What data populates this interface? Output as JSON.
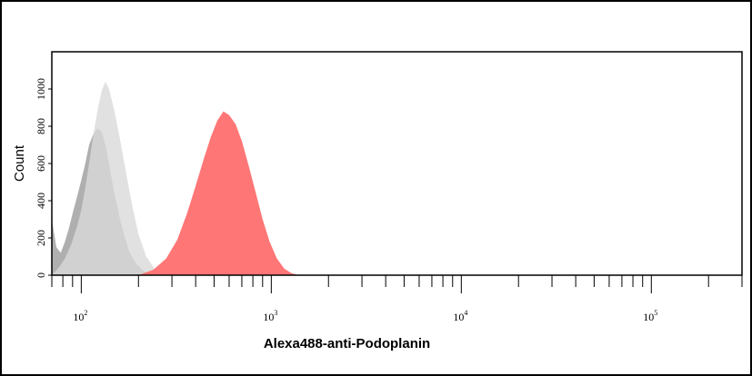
{
  "chart_data": {
    "type": "area",
    "title": "",
    "xlabel": "Alexa488-anti-Podoplanin",
    "ylabel": "Count",
    "x_scale": "log",
    "xlim": [
      70,
      300000
    ],
    "ylim": [
      0,
      1200
    ],
    "x_ticks": [
      {
        "value": 100,
        "base": "10",
        "exp": "2"
      },
      {
        "value": 1000,
        "base": "10",
        "exp": "3"
      },
      {
        "value": 10000,
        "base": "10",
        "exp": "4"
      },
      {
        "value": 100000,
        "base": "10",
        "exp": "5"
      }
    ],
    "y_ticks": [
      "0",
      "200",
      "400",
      "600",
      "800",
      "1000"
    ],
    "grid": false,
    "series": [
      {
        "color": "#a8a8a8",
        "points": [
          [
            70,
            300
          ],
          [
            74,
            150
          ],
          [
            78,
            120
          ],
          [
            82,
            180
          ],
          [
            86,
            250
          ],
          [
            90,
            330
          ],
          [
            95,
            420
          ],
          [
            100,
            510
          ],
          [
            105,
            600
          ],
          [
            110,
            700
          ],
          [
            116,
            760
          ],
          [
            122,
            790
          ],
          [
            128,
            770
          ],
          [
            135,
            690
          ],
          [
            142,
            560
          ],
          [
            150,
            430
          ],
          [
            160,
            300
          ],
          [
            170,
            200
          ],
          [
            180,
            120
          ],
          [
            195,
            60
          ],
          [
            215,
            20
          ],
          [
            240,
            0
          ]
        ]
      },
      {
        "color": "#d9d9d9",
        "points": [
          [
            70,
            0
          ],
          [
            76,
            40
          ],
          [
            82,
            90
          ],
          [
            88,
            160
          ],
          [
            95,
            260
          ],
          [
            100,
            350
          ],
          [
            105,
            470
          ],
          [
            110,
            600
          ],
          [
            116,
            760
          ],
          [
            122,
            890
          ],
          [
            128,
            990
          ],
          [
            134,
            1040
          ],
          [
            140,
            1000
          ],
          [
            148,
            900
          ],
          [
            158,
            760
          ],
          [
            170,
            580
          ],
          [
            185,
            380
          ],
          [
            200,
            220
          ],
          [
            220,
            100
          ],
          [
            245,
            30
          ],
          [
            270,
            0
          ]
        ]
      },
      {
        "color": "#ff6a6a",
        "points": [
          [
            200,
            0
          ],
          [
            240,
            30
          ],
          [
            280,
            90
          ],
          [
            320,
            190
          ],
          [
            360,
            330
          ],
          [
            400,
            480
          ],
          [
            440,
            620
          ],
          [
            480,
            740
          ],
          [
            520,
            830
          ],
          [
            560,
            880
          ],
          [
            600,
            860
          ],
          [
            650,
            810
          ],
          [
            700,
            720
          ],
          [
            760,
            590
          ],
          [
            830,
            440
          ],
          [
            900,
            300
          ],
          [
            980,
            180
          ],
          [
            1070,
            90
          ],
          [
            1170,
            35
          ],
          [
            1280,
            10
          ],
          [
            1400,
            0
          ]
        ]
      }
    ]
  }
}
